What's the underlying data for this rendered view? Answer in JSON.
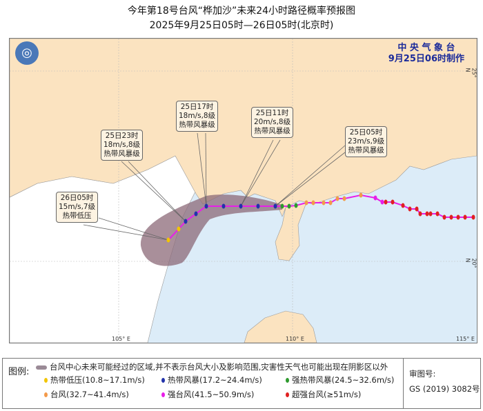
{
  "title": {
    "line1": "今年第18号台风“桦加沙”未来24小时路径概率预报图",
    "line2": "2025年9月25日05时—26日05时(北京时)"
  },
  "agency": {
    "name": "中 央 气 象 台",
    "issued": "9月25日06时制作"
  },
  "axes": {
    "lon": [
      "105° E",
      "110° E",
      "115° E"
    ],
    "lat": [
      "25° N",
      "20° N"
    ]
  },
  "callouts": [
    {
      "time": "26日05时",
      "wind": "15m/s,7级",
      "level": "热带低压"
    },
    {
      "time": "25日23时",
      "wind": "18m/s,8级",
      "level": "热带风暴级"
    },
    {
      "time": "25日17时",
      "wind": "18m/s,8级",
      "level": "热带风暴级"
    },
    {
      "time": "25日11时",
      "wind": "20m/s,8级",
      "level": "热带风暴级"
    },
    {
      "time": "25日05时",
      "wind": "23m/s,9级",
      "level": "热带风暴级"
    }
  ],
  "colors": {
    "td": "#f2c500",
    "ts": "#2233aa",
    "sts": "#2e9a2e",
    "ty": "#f39a4a",
    "sty": "#e81ee8",
    "super": "#e02020",
    "track": "#e81ee8",
    "cone": "#8c6a78",
    "sea": "#dcecf8",
    "china": "#fbe3c0"
  },
  "legend": {
    "title": "图例:",
    "cone": "台风中心未来可能经过的区域,并不表示台风大小及影响范围,灾害性天气也可能出现在阴影区以外",
    "items": [
      {
        "label": "热带低压(10.8~17.1m/s)",
        "color": "#f2c500"
      },
      {
        "label": "热带风暴(17.2~24.4m/s)",
        "color": "#2233aa"
      },
      {
        "label": "强热带风暴(24.5~32.6m/s)",
        "color": "#2e9a2e"
      },
      {
        "label": "台风(32.7~41.4m/s)",
        "color": "#f39a4a"
      },
      {
        "label": "强台风(41.5~50.9m/s)",
        "color": "#e81ee8"
      },
      {
        "label": "超强台风(≥51m/s)",
        "color": "#e02020"
      }
    ],
    "approval_label": "审图号:",
    "approval_no": "GS (2019) 3082号"
  }
}
